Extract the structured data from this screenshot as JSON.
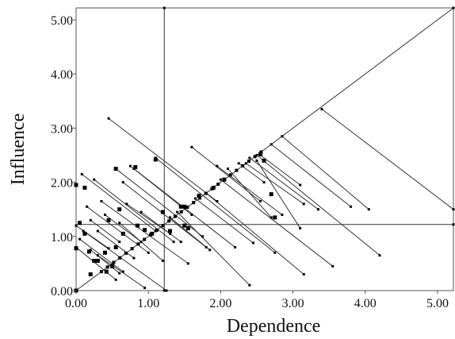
{
  "chart_data": {
    "type": "scatter",
    "title": "",
    "xlabel": "Dependence",
    "ylabel": "Influence",
    "xlim": [
      0,
      5.22
    ],
    "ylim": [
      0,
      5.22
    ],
    "x_ticks": [
      "0.00",
      "1.00",
      "2.00",
      "3.00",
      "4.00",
      "5.00"
    ],
    "y_ticks": [
      "0.00",
      "1.00",
      "2.00",
      "3.00",
      "4.00",
      "5.00"
    ],
    "x_tick_values": [
      0,
      1,
      2,
      3,
      4,
      5
    ],
    "y_tick_values": [
      0,
      1,
      2,
      3,
      4,
      5
    ],
    "grid": false,
    "legend": "none",
    "threshold": {
      "x": 1.22,
      "y": 1.22
    },
    "diagonal": true,
    "colors": {
      "marks": "#000000",
      "lines": "#333333",
      "frame": "#555555"
    },
    "segments": [
      {
        "start": [
          0.45,
          3.18
        ],
        "end": [
          1.95,
          1.65
        ]
      },
      {
        "start": [
          0.08,
          2.15
        ],
        "end": [
          1.1,
          1.1
        ]
      },
      {
        "start": [
          0.25,
          2.05
        ],
        "end": [
          1.35,
          0.9
        ]
      },
      {
        "start": [
          0.55,
          2.25
        ],
        "end": [
          1.75,
          1.0
        ]
      },
      {
        "start": [
          0.8,
          2.25
        ],
        "end": [
          2.2,
          0.8
        ]
      },
      {
        "start": [
          0.75,
          2.3
        ],
        "end": [
          1.6,
          1.4
        ]
      },
      {
        "start": [
          1.1,
          2.45
        ],
        "end": [
          2.75,
          0.7
        ]
      },
      {
        "start": [
          0.65,
          2.0
        ],
        "end": [
          1.8,
          0.8
        ]
      },
      {
        "start": [
          0.35,
          1.65
        ],
        "end": [
          1.55,
          0.5
        ]
      },
      {
        "start": [
          0.15,
          1.55
        ],
        "end": [
          1.0,
          0.7
        ]
      },
      {
        "start": [
          0.2,
          1.3
        ],
        "end": [
          0.6,
          0.9
        ]
      },
      {
        "start": [
          0.0,
          1.2
        ],
        "end": [
          0.45,
          0.78
        ]
      },
      {
        "start": [
          0.05,
          0.95
        ],
        "end": [
          0.65,
          0.35
        ]
      },
      {
        "start": [
          0.2,
          0.75
        ],
        "end": [
          0.6,
          0.32
        ]
      },
      {
        "start": [
          0.3,
          0.65
        ],
        "end": [
          0.95,
          0.05
        ]
      },
      {
        "start": [
          0.0,
          0.8
        ],
        "end": [
          0.55,
          0.2
        ]
      },
      {
        "start": [
          0.1,
          1.1
        ],
        "end": [
          1.25,
          0.0
        ]
      },
      {
        "start": [
          1.6,
          2.65
        ],
        "end": [
          2.55,
          1.65
        ]
      },
      {
        "start": [
          1.95,
          2.3
        ],
        "end": [
          2.85,
          1.4
        ]
      },
      {
        "start": [
          2.25,
          2.35
        ],
        "end": [
          2.6,
          2.0
        ]
      },
      {
        "start": [
          2.35,
          2.35
        ],
        "end": [
          3.15,
          1.6
        ]
      },
      {
        "start": [
          2.55,
          2.5
        ],
        "end": [
          3.1,
          1.95
        ]
      },
      {
        "start": [
          2.4,
          2.45
        ],
        "end": [
          3.35,
          1.5
        ]
      },
      {
        "start": [
          2.5,
          2.5
        ],
        "end": [
          4.2,
          0.65
        ]
      },
      {
        "start": [
          2.0,
          2.05
        ],
        "end": [
          3.55,
          0.45
        ]
      },
      {
        "start": [
          1.8,
          1.8
        ],
        "end": [
          3.15,
          0.3
        ]
      },
      {
        "start": [
          1.65,
          1.7
        ],
        "end": [
          2.45,
          0.88
        ]
      },
      {
        "start": [
          1.4,
          1.45
        ],
        "end": [
          2.4,
          0.1
        ]
      },
      {
        "start": [
          1.3,
          1.35
        ],
        "end": [
          1.85,
          0.75
        ]
      },
      {
        "start": [
          2.7,
          2.7
        ],
        "end": [
          3.8,
          1.55
        ]
      },
      {
        "start": [
          2.85,
          2.85
        ],
        "end": [
          4.05,
          1.5
        ]
      },
      {
        "start": [
          3.4,
          3.35
        ],
        "end": [
          5.22,
          1.5
        ]
      },
      {
        "start": [
          2.5,
          2.4
        ],
        "end": [
          3.1,
          1.15
        ]
      },
      {
        "start": [
          2.1,
          2.25
        ],
        "end": [
          2.7,
          1.35
        ]
      },
      {
        "start": [
          0.7,
          1.6
        ],
        "end": [
          1.3,
          1.05
        ]
      },
      {
        "start": [
          0.9,
          1.45
        ],
        "end": [
          1.45,
          0.9
        ]
      },
      {
        "start": [
          0.4,
          1.4
        ],
        "end": [
          0.9,
          0.9
        ]
      },
      {
        "start": [
          0.6,
          1.25
        ],
        "end": [
          1.2,
          0.55
        ]
      },
      {
        "start": [
          0.3,
          1.1
        ],
        "end": [
          0.8,
          0.6
        ]
      }
    ],
    "points": [
      [
        0.12,
        1.9
      ],
      [
        0.0,
        1.95
      ],
      [
        0.55,
        2.25
      ],
      [
        0.82,
        2.28
      ],
      [
        1.1,
        2.42
      ],
      [
        1.5,
        1.55
      ],
      [
        1.3,
        1.1
      ],
      [
        1.45,
        1.55
      ],
      [
        0.95,
        1.12
      ],
      [
        0.65,
        1.05
      ],
      [
        0.45,
        1.3
      ],
      [
        0.05,
        1.25
      ],
      [
        0.0,
        0.78
      ],
      [
        0.12,
        1.05
      ],
      [
        0.18,
        0.72
      ],
      [
        0.3,
        0.55
      ],
      [
        0.4,
        0.7
      ],
      [
        0.55,
        0.8
      ],
      [
        0.85,
        1.2
      ],
      [
        0.6,
        1.5
      ],
      [
        1.2,
        1.45
      ],
      [
        1.05,
        1.05
      ],
      [
        1.5,
        1.2
      ],
      [
        1.55,
        1.15
      ],
      [
        2.55,
        2.52
      ],
      [
        2.75,
        1.35
      ],
      [
        2.7,
        1.78
      ],
      [
        2.6,
        2.4
      ],
      [
        2.05,
        2.05
      ],
      [
        1.9,
        1.9
      ],
      [
        1.7,
        1.75
      ],
      [
        0.42,
        0.35
      ],
      [
        0.5,
        0.45
      ],
      [
        0.25,
        0.55
      ],
      [
        0.2,
        0.3
      ],
      [
        0.0,
        0.0
      ]
    ]
  }
}
